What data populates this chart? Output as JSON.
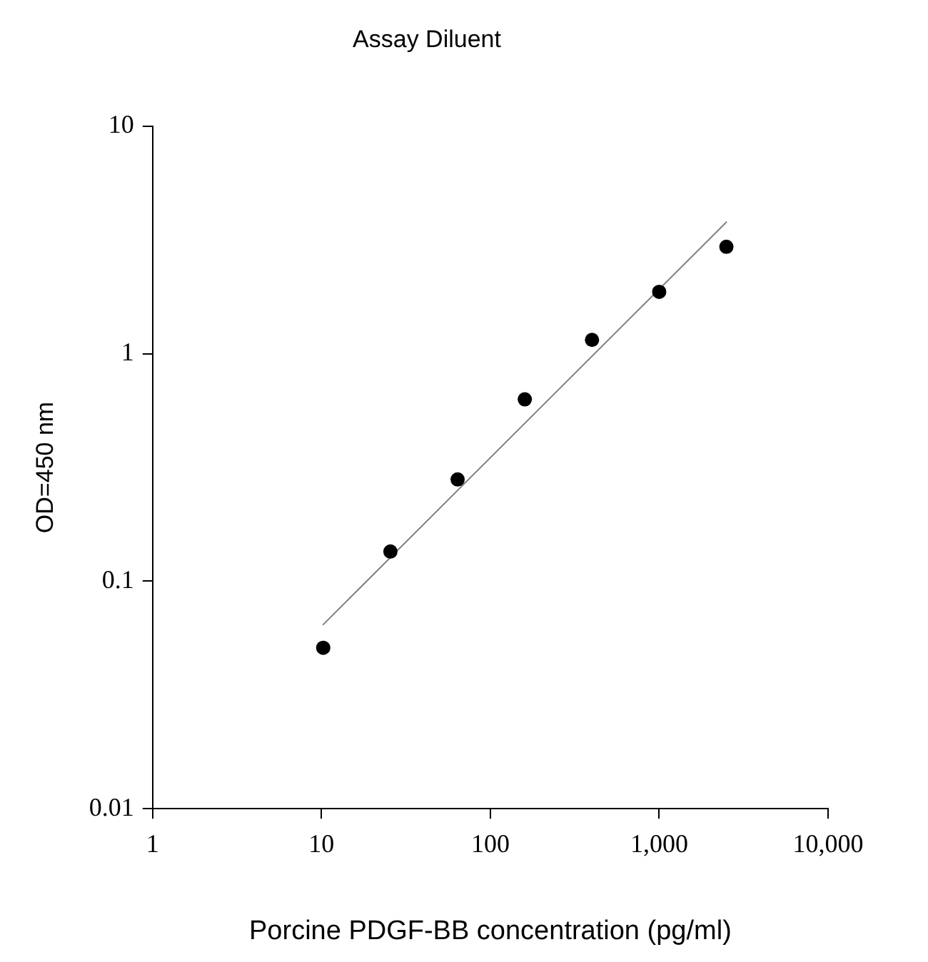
{
  "chart_data": {
    "type": "scatter",
    "title": "Assay Diluent",
    "xlabel": "Porcine PDGF-BB concentration (pg/ml)",
    "ylabel": "OD=450 nm",
    "log": "xy",
    "grid": false,
    "legend": false,
    "xlim": [
      1,
      10000
    ],
    "xticks": [
      1,
      10,
      100,
      {
        "value": 1000,
        "label": "1,000"
      },
      {
        "value": 10000,
        "label": "10,000"
      }
    ],
    "ylim": [
      0.01,
      10
    ],
    "yticks": [
      0.01,
      0.1,
      1,
      10
    ],
    "x": [
      10.24,
      25.6,
      64,
      160,
      400,
      1000,
      2500
    ],
    "series": [
      {
        "color": "#000000",
        "marker": "circle",
        "values": [
          0.051,
          0.135,
          0.28,
          0.63,
          1.15,
          1.87,
          2.95
        ]
      },
      {
        "type": "line",
        "color": "#808080",
        "line_style": "solid",
        "marker": "none",
        "x": [
          10.24,
          2500
        ],
        "values": [
          0.0645,
          3.79
        ]
      }
    ]
  }
}
